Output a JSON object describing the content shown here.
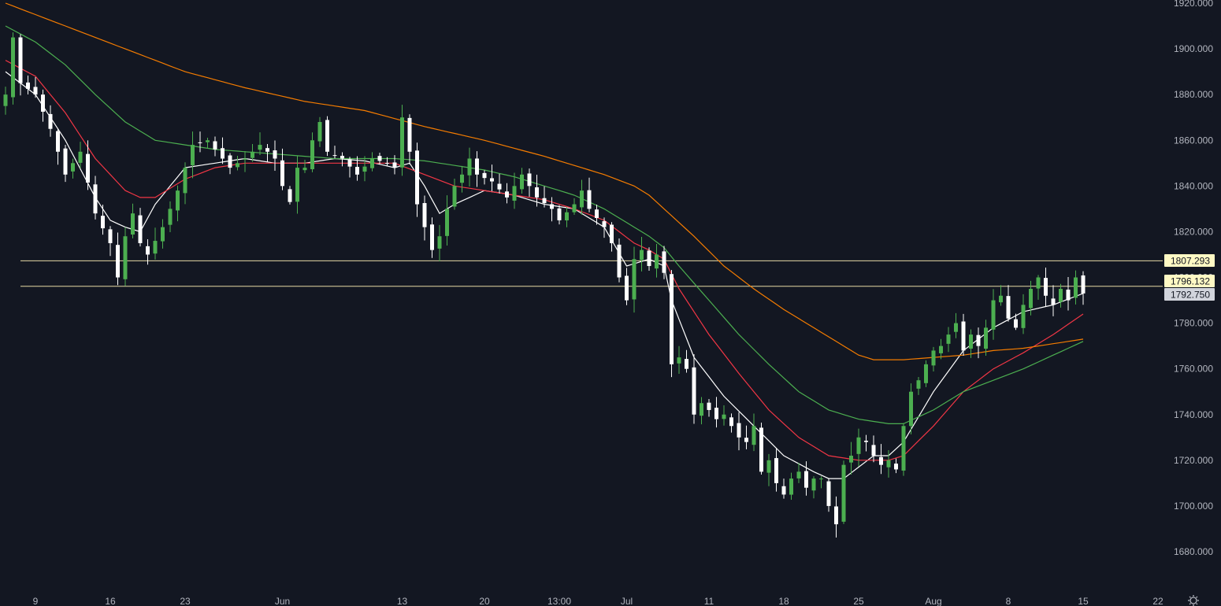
{
  "chart_data": {
    "type": "candlestick",
    "y_axis": {
      "ticks": [
        "1920.000",
        "1900.000",
        "1880.000",
        "1860.000",
        "1840.000",
        "1820.000",
        "1800.000",
        "1780.000",
        "1760.000",
        "1740.000",
        "1720.000",
        "1700.000",
        "1680.000"
      ],
      "tick_values": [
        1920,
        1900,
        1880,
        1860,
        1840,
        1820,
        1800,
        1780,
        1760,
        1740,
        1720,
        1700,
        1680
      ],
      "range": [
        1675,
        1921
      ],
      "position": "right"
    },
    "x_axis": {
      "labels": [
        "9",
        "16",
        "23",
        "Jun",
        "13",
        "20",
        "13:00",
        "Jul",
        "11",
        "18",
        "25",
        "Aug",
        "8",
        "15",
        "22"
      ],
      "label_index": [
        4,
        14,
        24,
        37,
        53,
        64,
        74,
        83,
        94,
        104,
        114,
        124,
        134,
        144,
        154
      ],
      "bar_count": 145
    },
    "price_tags": [
      {
        "label": "1807.293",
        "value": 1807.293,
        "bg": "#fff9c4",
        "fg": "#131722"
      },
      {
        "label": "1796.132",
        "value": 1796.132,
        "bg": "#fff9c4",
        "fg": "#131722"
      },
      {
        "label": "1792.750",
        "value": 1792.75,
        "bg": "#d1d4dc",
        "fg": "#131722"
      }
    ],
    "horizontal_lines": [
      1807.293,
      1796.132
    ],
    "close_anchors": [
      [
        0,
        1880
      ],
      [
        1,
        1905
      ],
      [
        2,
        1885
      ],
      [
        4,
        1880
      ],
      [
        6,
        1865
      ],
      [
        8,
        1845
      ],
      [
        10,
        1855
      ],
      [
        12,
        1828
      ],
      [
        14,
        1815
      ],
      [
        15,
        1800
      ],
      [
        16,
        1818
      ],
      [
        17,
        1828
      ],
      [
        18,
        1815
      ],
      [
        19,
        1810
      ],
      [
        21,
        1822
      ],
      [
        23,
        1838
      ],
      [
        25,
        1858
      ],
      [
        27,
        1860
      ],
      [
        28,
        1856
      ],
      [
        30,
        1848
      ],
      [
        32,
        1852
      ],
      [
        34,
        1858
      ],
      [
        36,
        1852
      ],
      [
        37,
        1840
      ],
      [
        38,
        1833
      ],
      [
        39,
        1848
      ],
      [
        40,
        1848
      ],
      [
        41,
        1860
      ],
      [
        42,
        1868
      ],
      [
        43,
        1855
      ],
      [
        45,
        1852
      ],
      [
        47,
        1845
      ],
      [
        49,
        1852
      ],
      [
        51,
        1850
      ],
      [
        52,
        1848
      ],
      [
        53,
        1870
      ],
      [
        54,
        1855
      ],
      [
        55,
        1832
      ],
      [
        56,
        1822
      ],
      [
        57,
        1812
      ],
      [
        58,
        1818
      ],
      [
        59,
        1830
      ],
      [
        60,
        1840
      ],
      [
        61,
        1845
      ],
      [
        62,
        1852
      ],
      [
        63,
        1845
      ],
      [
        65,
        1842
      ],
      [
        67,
        1835
      ],
      [
        69,
        1845
      ],
      [
        71,
        1835
      ],
      [
        73,
        1830
      ],
      [
        74,
        1825
      ],
      [
        76,
        1832
      ],
      [
        77,
        1838
      ],
      [
        78,
        1830
      ],
      [
        79,
        1826
      ],
      [
        80,
        1822
      ],
      [
        81,
        1815
      ],
      [
        82,
        1800
      ],
      [
        83,
        1790
      ],
      [
        84,
        1808
      ],
      [
        85,
        1812
      ],
      [
        86,
        1805
      ],
      [
        87,
        1810
      ],
      [
        88,
        1802
      ],
      [
        89,
        1762
      ],
      [
        90,
        1765
      ],
      [
        91,
        1760
      ],
      [
        92,
        1740
      ],
      [
        93,
        1745
      ],
      [
        94,
        1742
      ],
      [
        95,
        1738
      ],
      [
        96,
        1740
      ],
      [
        97,
        1735
      ],
      [
        98,
        1730
      ],
      [
        99,
        1728
      ],
      [
        100,
        1735
      ],
      [
        101,
        1715
      ],
      [
        102,
        1720
      ],
      [
        103,
        1710
      ],
      [
        104,
        1705
      ],
      [
        105,
        1712
      ],
      [
        106,
        1715
      ],
      [
        107,
        1708
      ],
      [
        108,
        1712
      ],
      [
        109,
        1712
      ],
      [
        110,
        1700
      ],
      [
        111,
        1692
      ],
      [
        112,
        1718
      ],
      [
        113,
        1722
      ],
      [
        114,
        1730
      ],
      [
        115,
        1728
      ],
      [
        116,
        1722
      ],
      [
        117,
        1718
      ],
      [
        118,
        1720
      ],
      [
        119,
        1716
      ],
      [
        120,
        1735
      ],
      [
        121,
        1750
      ],
      [
        122,
        1755
      ],
      [
        123,
        1762
      ],
      [
        124,
        1768
      ],
      [
        125,
        1770
      ],
      [
        126,
        1775
      ],
      [
        127,
        1780
      ],
      [
        128,
        1768
      ],
      [
        129,
        1775
      ],
      [
        130,
        1770
      ],
      [
        131,
        1778
      ],
      [
        132,
        1790
      ],
      [
        133,
        1792
      ],
      [
        134,
        1782
      ],
      [
        135,
        1778
      ],
      [
        136,
        1788
      ],
      [
        137,
        1795
      ],
      [
        138,
        1800
      ],
      [
        139,
        1792
      ],
      [
        140,
        1788
      ],
      [
        141,
        1795
      ],
      [
        142,
        1790
      ],
      [
        143,
        1800
      ],
      [
        144,
        1793
      ]
    ],
    "moving_averages": [
      {
        "color": "#ffffff",
        "anchors": [
          [
            0,
            1890
          ],
          [
            4,
            1880
          ],
          [
            8,
            1860
          ],
          [
            12,
            1835
          ],
          [
            14,
            1825
          ],
          [
            16,
            1822
          ],
          [
            18,
            1820
          ],
          [
            20,
            1832
          ],
          [
            24,
            1848
          ],
          [
            28,
            1850
          ],
          [
            32,
            1852
          ],
          [
            36,
            1850
          ],
          [
            40,
            1850
          ],
          [
            44,
            1852
          ],
          [
            48,
            1851
          ],
          [
            52,
            1848
          ],
          [
            54,
            1850
          ],
          [
            56,
            1840
          ],
          [
            58,
            1828
          ],
          [
            60,
            1832
          ],
          [
            64,
            1838
          ],
          [
            68,
            1836
          ],
          [
            72,
            1832
          ],
          [
            76,
            1830
          ],
          [
            80,
            1822
          ],
          [
            83,
            1805
          ],
          [
            86,
            1808
          ],
          [
            88,
            1805
          ],
          [
            89,
            1790
          ],
          [
            92,
            1765
          ],
          [
            96,
            1748
          ],
          [
            100,
            1735
          ],
          [
            104,
            1722
          ],
          [
            108,
            1715
          ],
          [
            110,
            1712
          ],
          [
            112,
            1712
          ],
          [
            116,
            1722
          ],
          [
            118,
            1722
          ],
          [
            120,
            1728
          ],
          [
            124,
            1750
          ],
          [
            128,
            1768
          ],
          [
            132,
            1778
          ],
          [
            136,
            1785
          ],
          [
            140,
            1788
          ],
          [
            144,
            1793
          ]
        ]
      },
      {
        "color": "#f23645",
        "anchors": [
          [
            0,
            1895
          ],
          [
            4,
            1888
          ],
          [
            8,
            1872
          ],
          [
            12,
            1852
          ],
          [
            16,
            1838
          ],
          [
            18,
            1835
          ],
          [
            20,
            1835
          ],
          [
            24,
            1843
          ],
          [
            28,
            1848
          ],
          [
            32,
            1850
          ],
          [
            36,
            1850
          ],
          [
            40,
            1850
          ],
          [
            44,
            1850
          ],
          [
            48,
            1850
          ],
          [
            52,
            1850
          ],
          [
            56,
            1845
          ],
          [
            60,
            1840
          ],
          [
            64,
            1838
          ],
          [
            68,
            1836
          ],
          [
            72,
            1834
          ],
          [
            76,
            1830
          ],
          [
            80,
            1825
          ],
          [
            84,
            1815
          ],
          [
            86,
            1812
          ],
          [
            88,
            1808
          ],
          [
            90,
            1795
          ],
          [
            94,
            1775
          ],
          [
            98,
            1758
          ],
          [
            102,
            1742
          ],
          [
            106,
            1730
          ],
          [
            110,
            1722
          ],
          [
            114,
            1720
          ],
          [
            118,
            1720
          ],
          [
            120,
            1722
          ],
          [
            124,
            1735
          ],
          [
            128,
            1750
          ],
          [
            132,
            1760
          ],
          [
            136,
            1767
          ],
          [
            140,
            1775
          ],
          [
            144,
            1784
          ]
        ]
      },
      {
        "color": "#4caf50",
        "anchors": [
          [
            0,
            1910
          ],
          [
            4,
            1903
          ],
          [
            8,
            1893
          ],
          [
            12,
            1880
          ],
          [
            16,
            1868
          ],
          [
            20,
            1860
          ],
          [
            24,
            1858
          ],
          [
            28,
            1856
          ],
          [
            32,
            1855
          ],
          [
            36,
            1854
          ],
          [
            40,
            1853
          ],
          [
            44,
            1852
          ],
          [
            48,
            1852
          ],
          [
            52,
            1852
          ],
          [
            56,
            1851
          ],
          [
            60,
            1849
          ],
          [
            64,
            1847
          ],
          [
            68,
            1844
          ],
          [
            72,
            1840
          ],
          [
            76,
            1836
          ],
          [
            80,
            1830
          ],
          [
            84,
            1822
          ],
          [
            86,
            1818
          ],
          [
            88,
            1813
          ],
          [
            90,
            1805
          ],
          [
            94,
            1790
          ],
          [
            98,
            1775
          ],
          [
            102,
            1762
          ],
          [
            106,
            1750
          ],
          [
            110,
            1742
          ],
          [
            114,
            1738
          ],
          [
            118,
            1736
          ],
          [
            120,
            1736
          ],
          [
            124,
            1742
          ],
          [
            128,
            1750
          ],
          [
            132,
            1755
          ],
          [
            136,
            1760
          ],
          [
            140,
            1766
          ],
          [
            144,
            1772
          ]
        ]
      },
      {
        "color": "#f57c00",
        "anchors": [
          [
            0,
            1920
          ],
          [
            8,
            1910
          ],
          [
            16,
            1900
          ],
          [
            24,
            1890
          ],
          [
            32,
            1883
          ],
          [
            40,
            1877
          ],
          [
            48,
            1873
          ],
          [
            56,
            1866
          ],
          [
            64,
            1860
          ],
          [
            72,
            1853
          ],
          [
            80,
            1845
          ],
          [
            84,
            1840
          ],
          [
            86,
            1836
          ],
          [
            88,
            1830
          ],
          [
            92,
            1818
          ],
          [
            96,
            1805
          ],
          [
            100,
            1795
          ],
          [
            104,
            1786
          ],
          [
            108,
            1778
          ],
          [
            112,
            1770
          ],
          [
            114,
            1766
          ],
          [
            116,
            1764
          ],
          [
            120,
            1764
          ],
          [
            124,
            1765
          ],
          [
            128,
            1766
          ],
          [
            132,
            1768
          ],
          [
            136,
            1769
          ],
          [
            140,
            1771
          ],
          [
            144,
            1773
          ]
        ]
      }
    ],
    "colors": {
      "background": "#131722",
      "candle_up": "#4caf50",
      "candle_down": "#ffffff",
      "axis_text": "#b2b5be",
      "hline": "#e6d9a4"
    },
    "grid": false,
    "settings_icon": "gear-icon"
  }
}
